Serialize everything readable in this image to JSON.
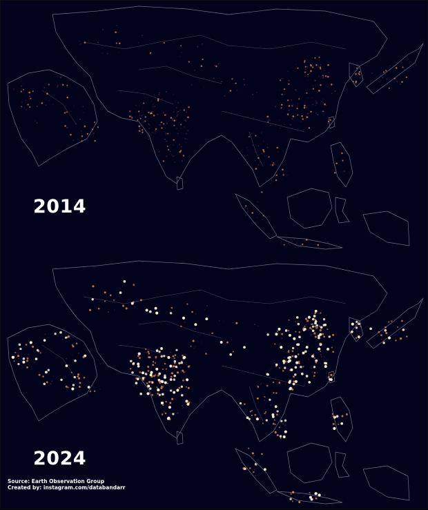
{
  "panels": [
    {
      "year": "2014",
      "intensity": 0.55
    },
    {
      "year": "2024",
      "intensity": 1.0
    }
  ],
  "source_text": "Source: Earth Observation Group",
  "credit_text": "Created by: instagram.com/databandarr",
  "colors": {
    "background": "#02021a",
    "coastline": "#6f6f86",
    "light_low": "#7a2e5a",
    "light_mid": "#e8905a",
    "light_high": "#fff4d6"
  }
}
